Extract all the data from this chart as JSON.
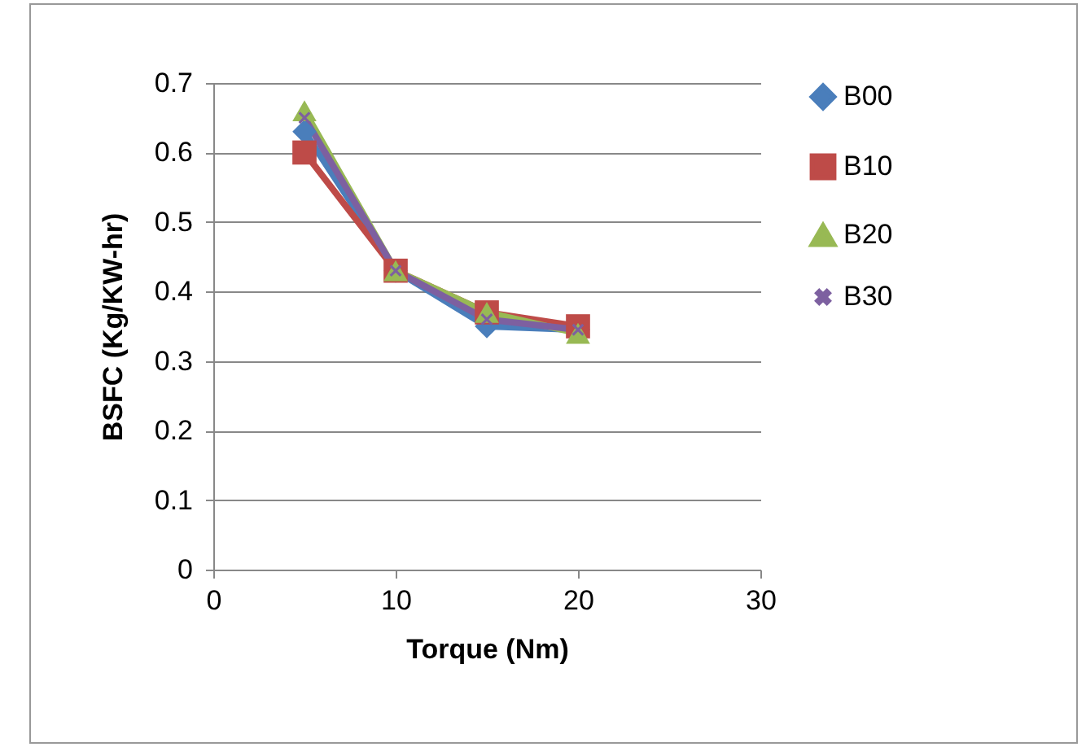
{
  "chart_data": {
    "type": "line",
    "xlabel": "Torque (Nm)",
    "ylabel": "BSFC (Kg/KW-hr)",
    "x": [
      5,
      10,
      15,
      20
    ],
    "xlim": [
      0,
      30
    ],
    "xticks": [
      0,
      10,
      20,
      30
    ],
    "ylim": [
      0,
      0.7
    ],
    "yticks": [
      0,
      0.1,
      0.2,
      0.3,
      0.4,
      0.5,
      0.6,
      0.7
    ],
    "grid": "y",
    "legend": "right",
    "series": [
      {
        "name": "B00",
        "color": "#4a7ebb",
        "marker": "diamond",
        "values": [
          0.63,
          0.43,
          0.35,
          0.345
        ]
      },
      {
        "name": "B10",
        "color": "#be4b48",
        "marker": "square",
        "values": [
          0.6,
          0.43,
          0.37,
          0.35
        ]
      },
      {
        "name": "B20",
        "color": "#98b954",
        "marker": "triangle",
        "values": [
          0.66,
          0.43,
          0.37,
          0.34
        ]
      },
      {
        "name": "B30",
        "color": "#7d60a0",
        "marker": "cross",
        "values": [
          0.65,
          0.43,
          0.36,
          0.345
        ]
      }
    ]
  }
}
